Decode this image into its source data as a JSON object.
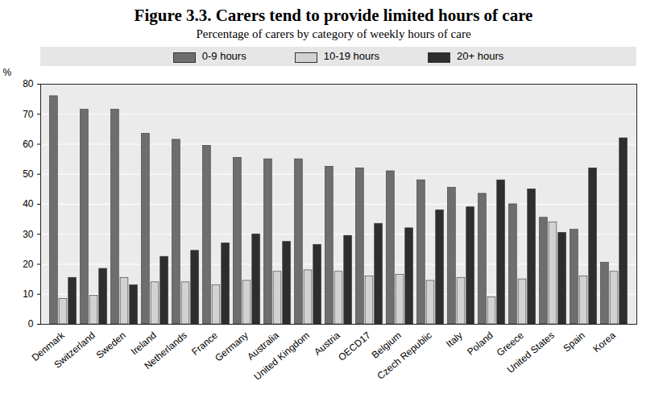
{
  "chart_data": {
    "type": "bar",
    "title": "Figure 3.3. Carers tend to provide limited hours of care",
    "subtitle": "Percentage of carers by category of weekly hours of care",
    "y_label": "%",
    "categories": [
      "Denmark",
      "Switzerland",
      "Sweden",
      "Ireland",
      "Netherlands",
      "France",
      "Germany",
      "Australia",
      "United Kingdom",
      "Austria",
      "OECD17",
      "Belgium",
      "Czech Republic",
      "Italy",
      "Poland",
      "Greece",
      "United States",
      "Spain",
      "Korea"
    ],
    "series": [
      {
        "name": "0-9 hours",
        "color": "#6e6e6e",
        "values": [
          76,
          71.5,
          71.5,
          63.5,
          61.5,
          59.5,
          55.5,
          55,
          55,
          52.5,
          52,
          51,
          48,
          45.5,
          43.5,
          40,
          35.5,
          31.5,
          20.5
        ]
      },
      {
        "name": "10-19 hours",
        "color": "#d2d2d2",
        "values": [
          8.5,
          9.5,
          15.5,
          14,
          14,
          13,
          14.5,
          17.5,
          18,
          17.5,
          16,
          16.5,
          14.5,
          15.5,
          9,
          15,
          34,
          16,
          17.5
        ]
      },
      {
        "name": "20+ hours",
        "color": "#2e2e2e",
        "values": [
          15.5,
          18.5,
          13,
          22.5,
          24.5,
          27,
          30,
          27.5,
          26.5,
          29.5,
          33.5,
          32,
          38,
          39,
          48,
          45,
          30.5,
          52,
          62
        ]
      }
    ],
    "ylim": [
      0,
      80
    ],
    "yticks": [
      0,
      10,
      20,
      30,
      40,
      50,
      60,
      70,
      80
    ],
    "grid": true,
    "legend": "top"
  }
}
